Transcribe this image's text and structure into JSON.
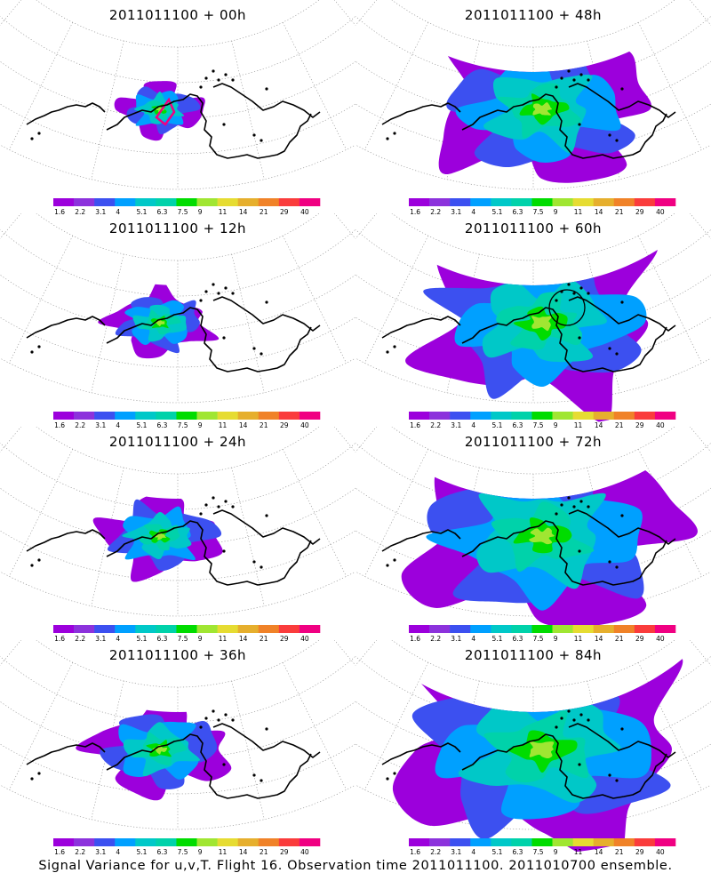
{
  "panels": [
    {
      "title": "2011011100 + 00h",
      "hour": 0
    },
    {
      "title": "2011011100 + 48h",
      "hour": 48
    },
    {
      "title": "2011011100 + 12h",
      "hour": 12
    },
    {
      "title": "2011011100 + 60h",
      "hour": 60
    },
    {
      "title": "2011011100 + 24h",
      "hour": 24
    },
    {
      "title": "2011011100 + 72h",
      "hour": 72
    },
    {
      "title": "2011011100 + 36h",
      "hour": 36
    },
    {
      "title": "2011011100 + 84h",
      "hour": 84
    }
  ],
  "colorbar": {
    "colors": [
      "#9c00dc",
      "#8c32dc",
      "#3c50f0",
      "#00a0ff",
      "#00c8c8",
      "#00d2aa",
      "#00dc00",
      "#a0e632",
      "#e6dc32",
      "#e6af2d",
      "#f08228",
      "#fa3c3c",
      "#f00082"
    ],
    "labels": [
      "1.6",
      "2.2",
      "3.1",
      "4",
      "5.1",
      "6.3",
      "7.5",
      "9",
      "11",
      "14",
      "21",
      "29",
      "40"
    ]
  },
  "footer": "Signal Variance for u,v,T. Flight 16. Observation time 2011011100. 2011010700 ensemble."
}
